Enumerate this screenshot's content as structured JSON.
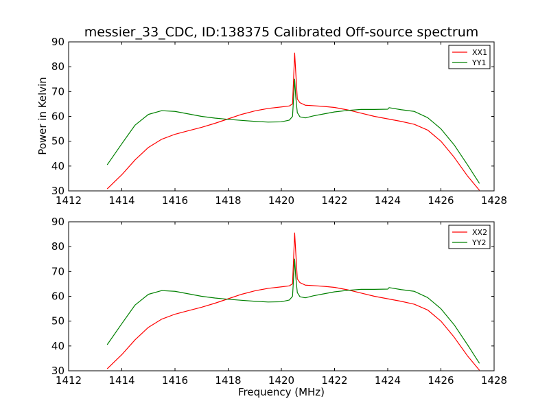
{
  "figure": {
    "title": "messier_33_CDC, ID:138375 Calibrated Off-source spectrum",
    "xlabel": "Frequency (MHz)",
    "ylabel": "Power in Kelvin"
  },
  "colors": {
    "red": "#ff0000",
    "green": "#008000",
    "axes": "#000000",
    "background": "#ffffff"
  },
  "chart_data": [
    {
      "type": "line",
      "title": "messier_33_CDC, ID:138375 Calibrated Off-source spectrum",
      "xlabel": "",
      "ylabel": "Power in Kelvin",
      "xlim": [
        1412,
        1428
      ],
      "ylim": [
        30,
        90
      ],
      "xticks": [
        1412,
        1414,
        1416,
        1418,
        1420,
        1422,
        1424,
        1426,
        1428
      ],
      "yticks": [
        30,
        40,
        50,
        60,
        70,
        80,
        90
      ],
      "grid": false,
      "legend": "top-right",
      "series": [
        {
          "name": "XX1",
          "color": "#ff0000",
          "x": [
            1413.45,
            1414.0,
            1414.5,
            1415.0,
            1415.5,
            1416.0,
            1416.5,
            1417.0,
            1417.5,
            1418.0,
            1418.5,
            1419.0,
            1419.5,
            1420.0,
            1420.3,
            1420.42,
            1420.5,
            1420.54,
            1420.6,
            1420.7,
            1420.9,
            1421.2,
            1421.6,
            1422.0,
            1422.5,
            1423.0,
            1423.5,
            1424.0,
            1424.5,
            1425.0,
            1425.5,
            1426.0,
            1426.5,
            1427.0,
            1427.45
          ],
          "y": [
            30.8,
            36.5,
            42.5,
            47.5,
            50.8,
            52.8,
            54.2,
            55.6,
            57.2,
            59.0,
            60.8,
            62.2,
            63.2,
            63.8,
            64.2,
            65.0,
            85.5,
            78.0,
            67.0,
            65.5,
            64.5,
            64.3,
            64.0,
            63.6,
            62.6,
            61.3,
            60.0,
            59.0,
            58.0,
            56.8,
            54.5,
            50.0,
            43.5,
            36.0,
            30.2
          ]
        },
        {
          "name": "YY1",
          "color": "#008000",
          "x": [
            1413.45,
            1414.0,
            1414.5,
            1415.0,
            1415.5,
            1416.0,
            1416.5,
            1417.0,
            1417.5,
            1418.0,
            1418.5,
            1419.0,
            1419.5,
            1420.0,
            1420.3,
            1420.42,
            1420.5,
            1420.54,
            1420.6,
            1420.7,
            1420.9,
            1421.2,
            1421.6,
            1422.0,
            1422.5,
            1423.0,
            1423.5,
            1424.0,
            1424.05,
            1424.5,
            1425.0,
            1425.5,
            1426.0,
            1426.5,
            1427.0,
            1427.45
          ],
          "y": [
            40.5,
            49.0,
            56.5,
            60.8,
            62.3,
            62.0,
            61.0,
            60.0,
            59.3,
            58.8,
            58.4,
            58.0,
            57.7,
            57.8,
            58.5,
            60.0,
            75.0,
            68.0,
            61.5,
            59.8,
            59.4,
            60.2,
            61.0,
            61.8,
            62.4,
            62.8,
            62.8,
            62.9,
            63.5,
            62.7,
            62.0,
            59.5,
            55.0,
            48.5,
            40.5,
            33.0
          ]
        }
      ]
    },
    {
      "type": "line",
      "title": "",
      "xlabel": "Frequency (MHz)",
      "ylabel": "",
      "xlim": [
        1412,
        1428
      ],
      "ylim": [
        30,
        90
      ],
      "xticks": [
        1412,
        1414,
        1416,
        1418,
        1420,
        1422,
        1424,
        1426,
        1428
      ],
      "yticks": [
        30,
        40,
        50,
        60,
        70,
        80,
        90
      ],
      "grid": false,
      "legend": "top-right",
      "series": [
        {
          "name": "XX2",
          "color": "#ff0000",
          "x": [
            1413.45,
            1414.0,
            1414.5,
            1415.0,
            1415.5,
            1416.0,
            1416.5,
            1417.0,
            1417.5,
            1418.0,
            1418.5,
            1419.0,
            1419.5,
            1420.0,
            1420.3,
            1420.42,
            1420.5,
            1420.54,
            1420.6,
            1420.7,
            1420.9,
            1421.2,
            1421.6,
            1422.0,
            1422.5,
            1423.0,
            1423.5,
            1424.0,
            1424.5,
            1425.0,
            1425.5,
            1426.0,
            1426.5,
            1427.0,
            1427.45
          ],
          "y": [
            30.8,
            36.5,
            42.5,
            47.5,
            50.8,
            52.8,
            54.2,
            55.6,
            57.2,
            59.0,
            60.8,
            62.2,
            63.2,
            63.8,
            64.2,
            65.0,
            85.5,
            78.0,
            67.0,
            65.5,
            64.5,
            64.3,
            64.0,
            63.6,
            62.6,
            61.3,
            60.0,
            59.0,
            58.0,
            56.8,
            54.5,
            50.0,
            43.5,
            36.0,
            30.2
          ]
        },
        {
          "name": "YY2",
          "color": "#008000",
          "x": [
            1413.45,
            1414.0,
            1414.5,
            1415.0,
            1415.5,
            1416.0,
            1416.5,
            1417.0,
            1417.5,
            1418.0,
            1418.5,
            1419.0,
            1419.5,
            1420.0,
            1420.3,
            1420.42,
            1420.5,
            1420.54,
            1420.6,
            1420.7,
            1420.9,
            1421.2,
            1421.6,
            1422.0,
            1422.5,
            1423.0,
            1423.5,
            1424.0,
            1424.05,
            1424.5,
            1425.0,
            1425.5,
            1426.0,
            1426.5,
            1427.0,
            1427.45
          ],
          "y": [
            40.5,
            49.0,
            56.5,
            60.8,
            62.3,
            62.0,
            61.0,
            60.0,
            59.3,
            58.8,
            58.4,
            58.0,
            57.7,
            57.8,
            58.5,
            60.0,
            75.0,
            68.0,
            61.5,
            59.8,
            59.4,
            60.2,
            61.0,
            61.8,
            62.4,
            62.8,
            62.8,
            62.9,
            63.5,
            62.7,
            62.0,
            59.5,
            55.0,
            48.5,
            40.5,
            33.0
          ]
        }
      ]
    }
  ]
}
